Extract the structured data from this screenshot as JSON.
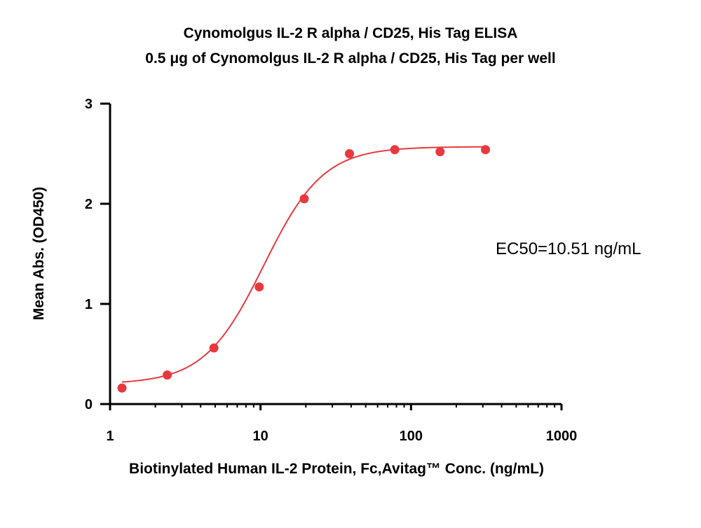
{
  "chart_data": {
    "type": "scatter",
    "title": "Cynomolgus IL-2 R alpha / CD25, His Tag ELISA",
    "subtitle": "0.5 μg of Cynomolgus IL-2 R alpha / CD25, His Tag per well",
    "xlabel": "Biotinylated Human IL-2 Protein, Fc,Avitag™ Conc. (ng/mL)",
    "ylabel": "Mean Abs. (OD450)",
    "x_scale": "log",
    "xlim": [
      1,
      1000
    ],
    "ylim": [
      0,
      3
    ],
    "x_ticks": [
      "1",
      "10",
      "100",
      "1000"
    ],
    "y_ticks": [
      "0",
      "1",
      "2",
      "3"
    ],
    "grid": false,
    "color": "#e8393f",
    "points": [
      {
        "x": 1.2,
        "y": 0.16
      },
      {
        "x": 2.4,
        "y": 0.29
      },
      {
        "x": 4.9,
        "y": 0.56
      },
      {
        "x": 9.8,
        "y": 1.17
      },
      {
        "x": 19.5,
        "y": 2.05
      },
      {
        "x": 39,
        "y": 2.5
      },
      {
        "x": 78,
        "y": 2.54
      },
      {
        "x": 156,
        "y": 2.52
      },
      {
        "x": 312.5,
        "y": 2.54
      }
    ],
    "fit_curve": {
      "bottom": 0.2,
      "top": 2.57,
      "ec50": 10.51,
      "hill": 2.2,
      "x_range": [
        1.2,
        312.5
      ]
    },
    "annotation": "EC50=10.51 ng/mL"
  }
}
